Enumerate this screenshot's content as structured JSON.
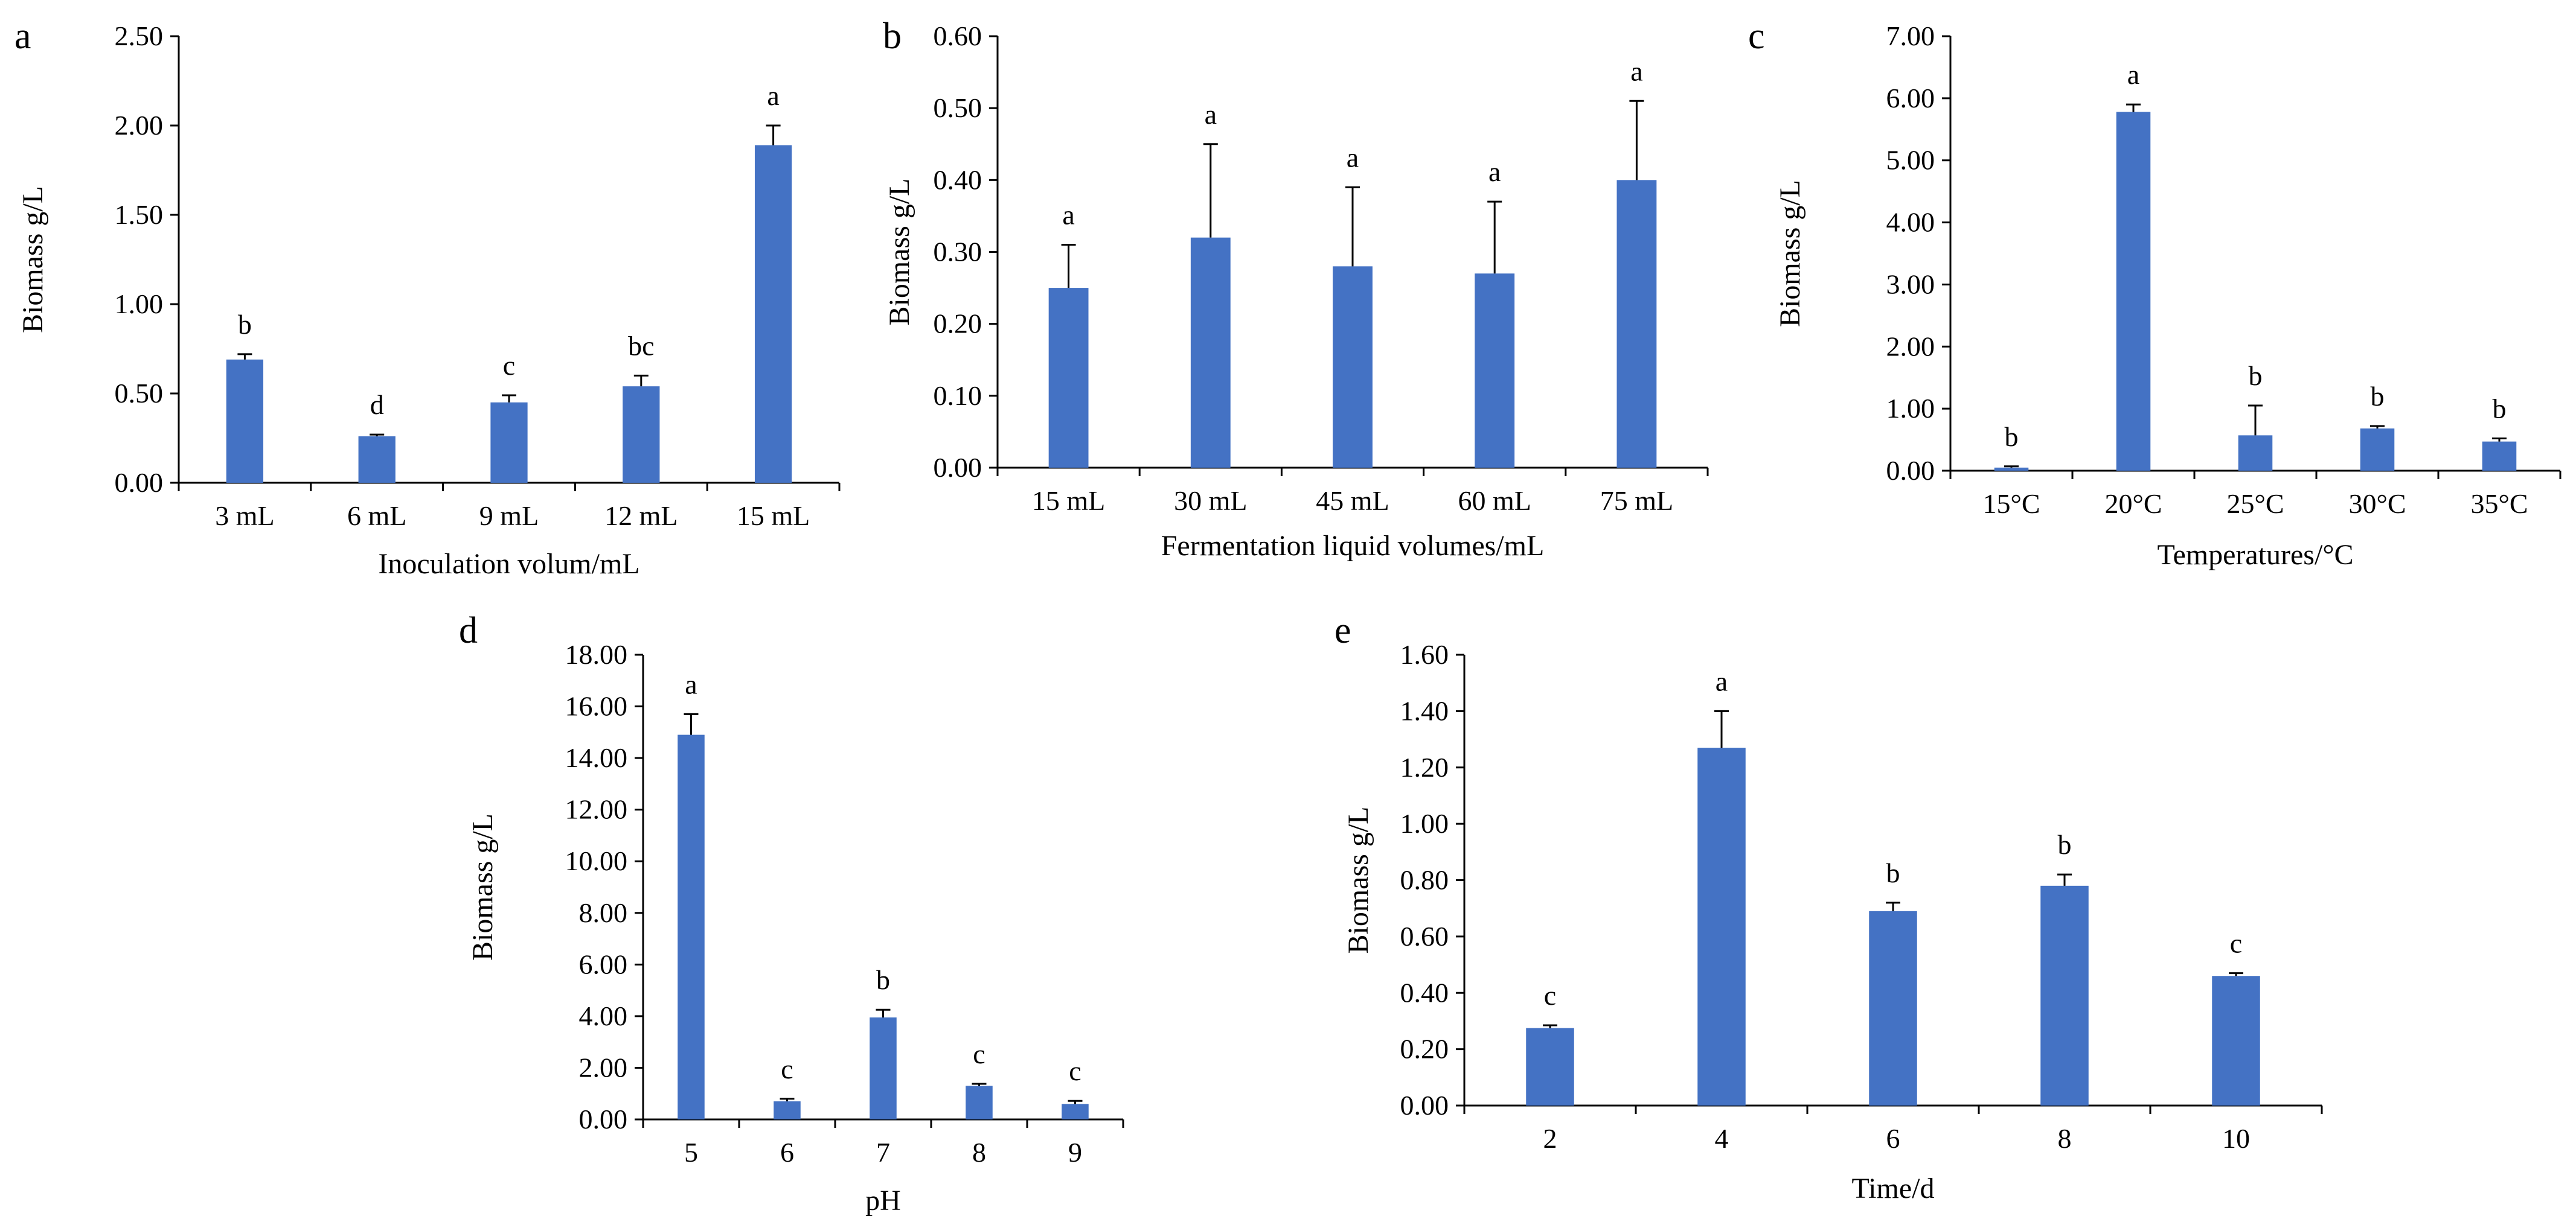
{
  "figure": {
    "colors": {
      "bar": "#4472C4",
      "axis": "#000000",
      "background": "#ffffff"
    }
  },
  "chart_data": [
    {
      "panel": "a",
      "type": "bar",
      "categories": [
        "3 mL",
        "6 mL",
        "9 mL",
        "12 mL",
        "15 mL"
      ],
      "values": [
        0.69,
        0.26,
        0.45,
        0.54,
        1.89
      ],
      "errors": [
        0.03,
        0.01,
        0.04,
        0.06,
        0.11
      ],
      "significance": [
        "b",
        "d",
        "c",
        "bc",
        "a"
      ],
      "xlabel": "Inoculation volum/mL",
      "ylabel": "Biomass g/L",
      "ylim": [
        0,
        2.5
      ],
      "yticks": [
        "0.00",
        "0.50",
        "1.00",
        "1.50",
        "2.00",
        "2.50"
      ]
    },
    {
      "panel": "b",
      "type": "bar",
      "categories": [
        "15 mL",
        "30 mL",
        "45 mL",
        "60 mL",
        "75 mL"
      ],
      "values": [
        0.25,
        0.32,
        0.28,
        0.27,
        0.4
      ],
      "errors": [
        0.06,
        0.13,
        0.11,
        0.1,
        0.11
      ],
      "significance": [
        "a",
        "a",
        "a",
        "a",
        "a"
      ],
      "xlabel": "Fermentation liquid volumes/mL",
      "ylabel": "Biomass g/L",
      "ylim": [
        0,
        0.6
      ],
      "yticks": [
        "0.00",
        "0.10",
        "0.20",
        "0.30",
        "0.40",
        "0.50",
        "0.60"
      ]
    },
    {
      "panel": "c",
      "type": "bar",
      "categories": [
        "15°C",
        "20°C",
        "25°C",
        "30°C",
        "35°C"
      ],
      "values": [
        0.05,
        5.78,
        0.57,
        0.68,
        0.47
      ],
      "errors": [
        0.02,
        0.12,
        0.48,
        0.04,
        0.05
      ],
      "significance": [
        "b",
        "a",
        "b",
        "b",
        "b"
      ],
      "xlabel": "Temperatures/°C",
      "ylabel": "Biomass g/L",
      "ylim": [
        0,
        7
      ],
      "yticks": [
        "0.00",
        "1.00",
        "2.00",
        "3.00",
        "4.00",
        "5.00",
        "6.00",
        "7.00"
      ]
    },
    {
      "panel": "d",
      "type": "bar",
      "categories": [
        "5",
        "6",
        "7",
        "8",
        "9"
      ],
      "values": [
        14.9,
        0.7,
        3.95,
        1.3,
        0.6
      ],
      "errors": [
        0.8,
        0.1,
        0.3,
        0.08,
        0.12
      ],
      "significance": [
        "a",
        "c",
        "b",
        "c",
        "c"
      ],
      "xlabel": "pH",
      "ylabel": "Biomass g/L",
      "ylim": [
        0,
        18
      ],
      "yticks": [
        "0.00",
        "2.00",
        "4.00",
        "6.00",
        "8.00",
        "10.00",
        "12.00",
        "14.00",
        "16.00",
        "18.00"
      ]
    },
    {
      "panel": "e",
      "type": "bar",
      "categories": [
        "2",
        "4",
        "6",
        "8",
        "10"
      ],
      "values": [
        0.275,
        1.27,
        0.69,
        0.78,
        0.46
      ],
      "errors": [
        0.01,
        0.13,
        0.03,
        0.04,
        0.01
      ],
      "significance": [
        "c",
        "a",
        "b",
        "b",
        "c"
      ],
      "xlabel": "Time/d",
      "ylabel": "Biomass g/L",
      "ylim": [
        0,
        1.6
      ],
      "yticks": [
        "0.00",
        "0.20",
        "0.40",
        "0.60",
        "0.80",
        "1.00",
        "1.20",
        "1.40",
        "1.60"
      ]
    }
  ]
}
